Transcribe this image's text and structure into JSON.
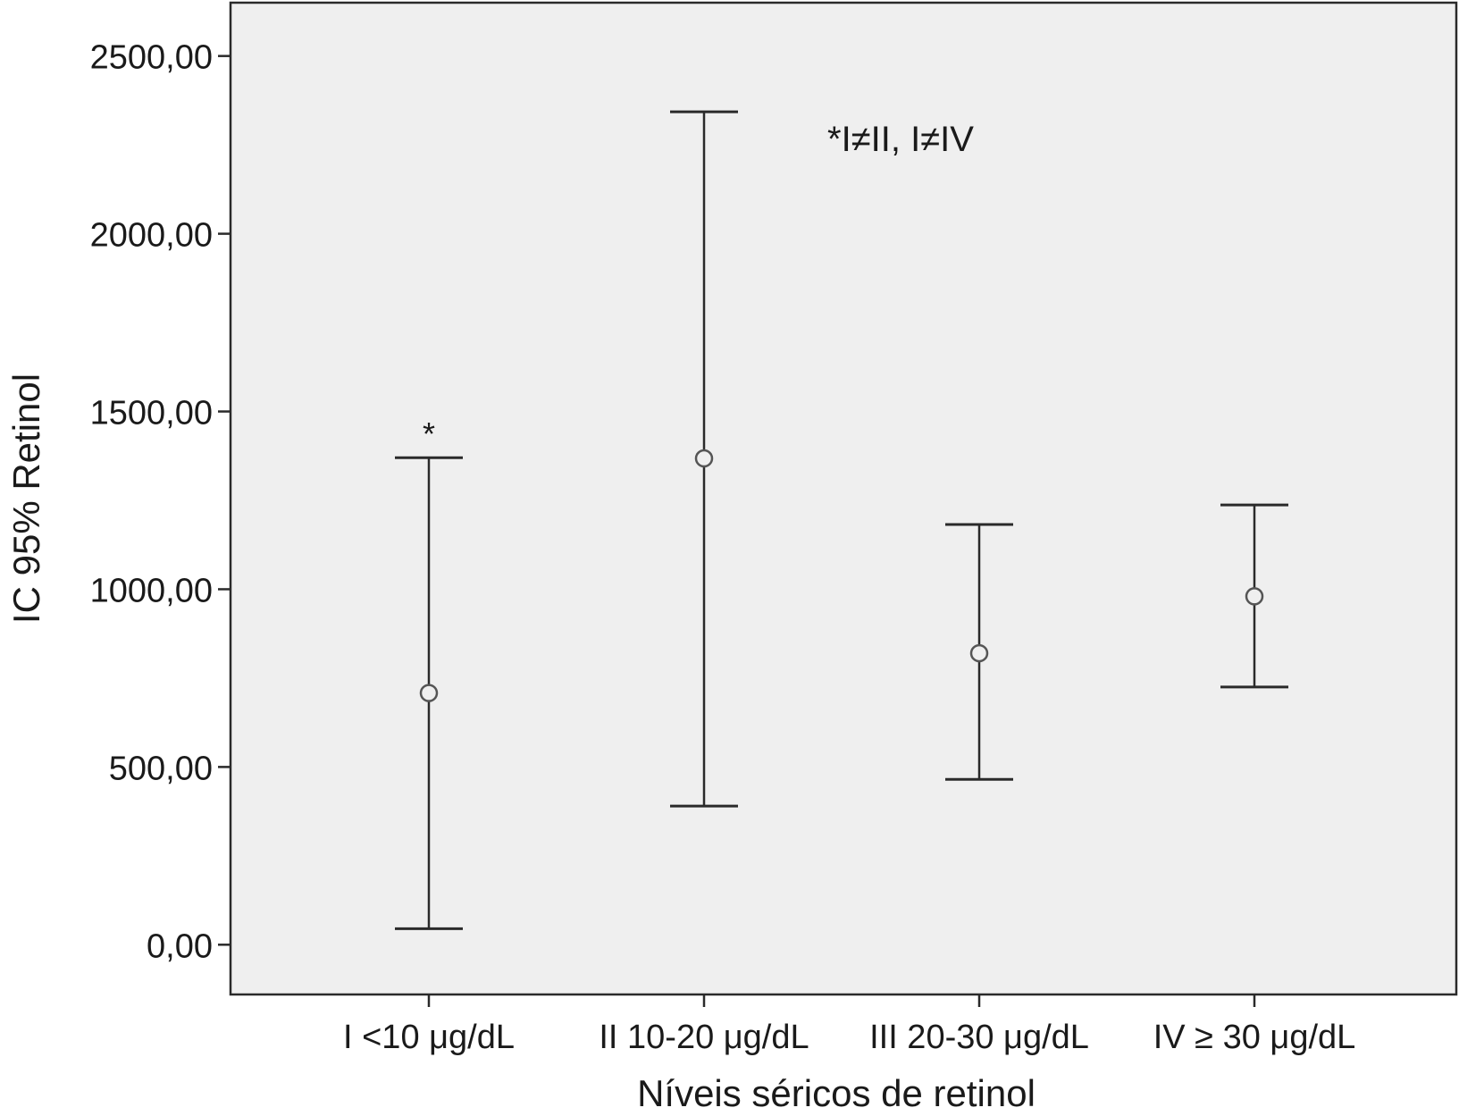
{
  "chart_data": {
    "type": "errorbar",
    "categories": [
      "I <10 μg/dL",
      "II 10-20 μg/dL",
      "III 20-30 μg/dL",
      "IV ≥ 30 μg/dL"
    ],
    "series": [
      {
        "mean": [
          708,
          1368,
          820,
          980
        ],
        "lower": [
          45,
          390,
          465,
          725
        ],
        "upper": [
          1370,
          2343,
          1182,
          1237
        ]
      }
    ],
    "xlabel": "Níveis séricos de retinol",
    "ylabel": "IC 95% Retinol",
    "ylim": [
      -140,
      2650
    ],
    "yticks": [
      0,
      500,
      1000,
      1500,
      2000,
      2500
    ],
    "ytick_labels": [
      "0,00",
      "500,00",
      "1000,00",
      "1500,00",
      "2000,00",
      "2500,00"
    ],
    "annotations": {
      "significance_marker": "*",
      "significance_text": "*I≠II, I≠IV"
    },
    "grid": false,
    "plot_background": "#efefef",
    "line_color": "#2a2a2a"
  }
}
